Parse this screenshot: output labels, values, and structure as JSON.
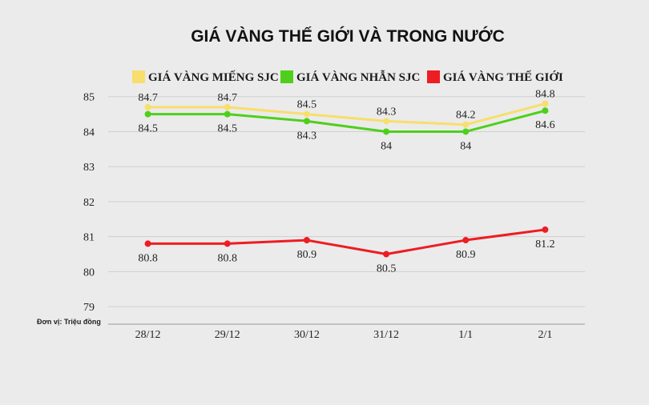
{
  "chart_data": {
    "type": "line",
    "title": "GIÁ VÀNG THẾ GIỚI VÀ TRONG NƯỚC",
    "categories": [
      "28/12",
      "29/12",
      "30/12",
      "31/12",
      "1/1",
      "2/1"
    ],
    "y_ticks": [
      "79",
      "80",
      "81",
      "82",
      "83",
      "84",
      "85"
    ],
    "ylim": [
      78.5,
      85.2
    ],
    "grid": true,
    "legend_position": "top",
    "unit_note": "Đơn vị: Triệu đồng",
    "series": [
      {
        "name": "GIÁ VÀNG MIẾNG SJC",
        "color": "#f8de6b",
        "values": [
          84.7,
          84.7,
          84.5,
          84.3,
          84.2,
          84.8
        ],
        "labels": [
          "84.7",
          "84.7",
          "84.5",
          "84.3",
          "84.2",
          "84.8"
        ],
        "label_position": "above"
      },
      {
        "name": "GIÁ VÀNG NHẪN SJC",
        "color": "#4fcf1c",
        "values": [
          84.5,
          84.5,
          84.3,
          84.0,
          84.0,
          84.6
        ],
        "labels": [
          "84.5",
          "84.5",
          "84.3",
          "84",
          "84",
          "84.6"
        ],
        "label_position": "below"
      },
      {
        "name": "GIÁ VÀNG THẾ GIỚI",
        "color": "#ee1c23",
        "values": [
          80.8,
          80.8,
          80.9,
          80.5,
          80.9,
          81.2
        ],
        "labels": [
          "80.8",
          "80.8",
          "80.9",
          "80.5",
          "80.9",
          "81.2"
        ],
        "label_position": "below"
      }
    ]
  }
}
